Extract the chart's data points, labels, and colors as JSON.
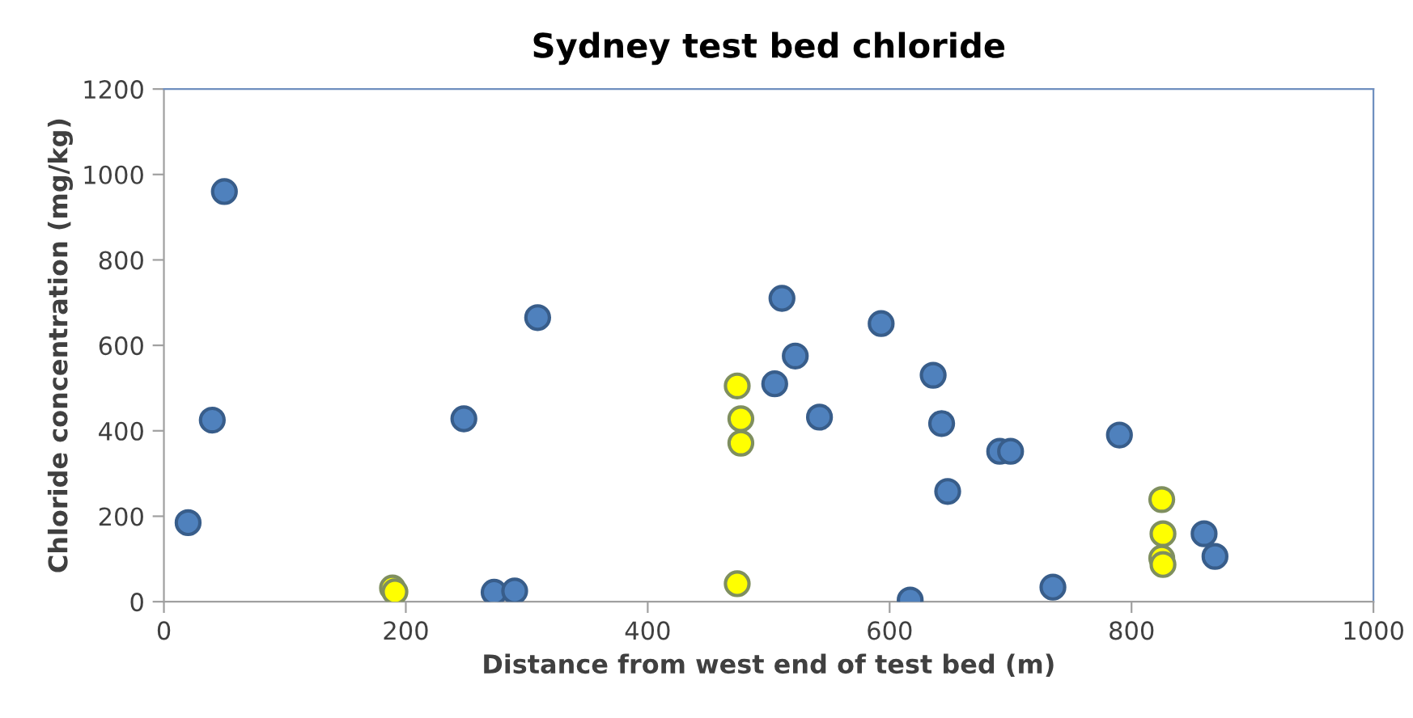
{
  "chart_data": {
    "type": "scatter",
    "title": "Sydney test bed chloride",
    "xlabel": "Distance from west end of test bed (m)",
    "ylabel": "Chloride concentration (mg/kg)",
    "xlim": [
      0,
      1000
    ],
    "xticks": [
      0,
      200,
      400,
      600,
      800,
      1000
    ],
    "ylim": [
      0,
      1200
    ],
    "yticks": [
      0,
      200,
      400,
      600,
      800,
      1000,
      1200
    ],
    "grid": false,
    "marker": "circle",
    "series": [
      {
        "color": "#4f81bd",
        "x": [
          20,
          40,
          50,
          248,
          273,
          290,
          309,
          511,
          505,
          522,
          542,
          593,
          617,
          636,
          643,
          648,
          691,
          700,
          735,
          790,
          860,
          869
        ],
        "values": [
          185,
          425,
          960,
          428,
          22,
          25,
          665,
          710,
          510,
          575,
          432,
          651,
          4,
          530,
          417,
          258,
          352,
          352,
          34,
          390,
          159,
          106
        ]
      },
      {
        "color": "#ffff00",
        "x": [
          189,
          191,
          474,
          477,
          477,
          474,
          825,
          826,
          825,
          826
        ],
        "values": [
          32,
          23,
          505,
          428,
          371,
          42,
          239,
          159,
          102,
          87
        ]
      }
    ]
  }
}
